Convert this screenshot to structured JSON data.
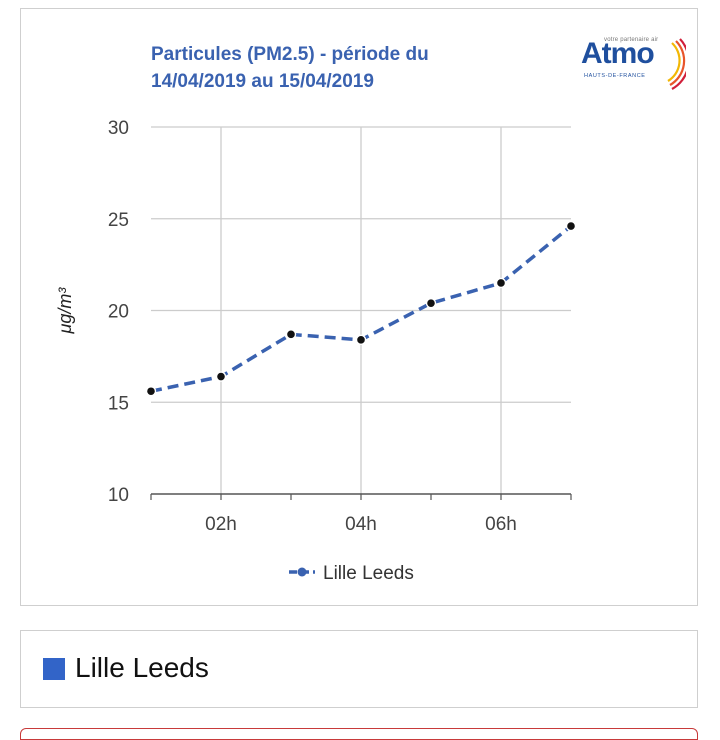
{
  "chart_data": {
    "type": "line",
    "title": "Particules (PM2.5) - période du 14/04/2019 au 15/04/2019",
    "title_lines": [
      "Particules (PM2.5) - période du",
      "14/04/2019 au 15/04/2019"
    ],
    "ylabel": "μg/m³",
    "xlabel": "",
    "ylim": [
      10,
      30
    ],
    "yticks": [
      10,
      15,
      20,
      25,
      30
    ],
    "xticks": [
      "02h",
      "04h",
      "06h"
    ],
    "x": [
      "01h",
      "02h",
      "03h",
      "04h",
      "05h",
      "06h",
      "07h"
    ],
    "series": [
      {
        "name": "Lille Leeds",
        "values": [
          15.6,
          16.4,
          18.7,
          18.4,
          20.4,
          21.5,
          24.6
        ]
      }
    ],
    "legend_position": "bottom",
    "grid": true
  },
  "logo": {
    "text": "Atmo",
    "tagline": "votre partenaire air",
    "subtitle": "HAUTS-DE-FRANCE"
  },
  "legend_card": {
    "label": "Lille Leeds"
  },
  "colors": {
    "series": "#3a62b0",
    "title": "#3a62b0",
    "swatch": "#3264c8",
    "grid": "#cccccc"
  }
}
